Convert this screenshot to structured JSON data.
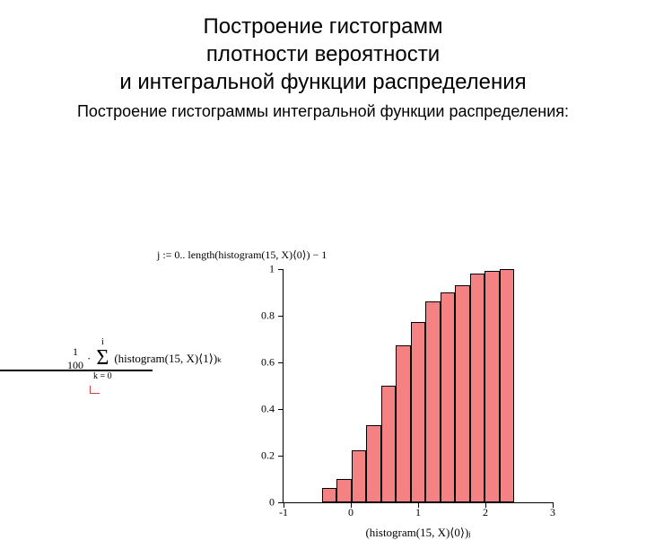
{
  "title_line1": "Построение гистограмм",
  "title_line2": "плотности вероятности",
  "title_line3": "и интегральной функции распределения",
  "subtitle": "Построение гистограммы интегральной функции распределения:",
  "formula_index": "j := 0.. length(histogram(15, X)⟨0⟩) − 1",
  "formula_frac_top": "1",
  "formula_frac_bot": "100",
  "formula_sigma_top": "i",
  "formula_sigma_bot": "k = 0",
  "formula_body": "(histogram(15, X)⟨1⟩)ₖ",
  "xaxis_title": "(histogram(15, X)⟨0⟩)ⱼ",
  "chart": {
    "type": "bar",
    "bar_fill": "#f58282",
    "bar_stroke": "#000000",
    "background": "#ffffff",
    "xlim": [
      -1,
      3
    ],
    "ylim": [
      0,
      1
    ],
    "yticks": [
      0,
      0.2,
      0.4,
      0.6,
      0.8,
      1
    ],
    "xticks": [
      -1,
      0,
      1,
      2,
      3
    ],
    "bar_width": 0.22,
    "data": [
      {
        "x": -0.32,
        "y": 0.06
      },
      {
        "x": -0.1,
        "y": 0.1
      },
      {
        "x": 0.12,
        "y": 0.22
      },
      {
        "x": 0.34,
        "y": 0.33
      },
      {
        "x": 0.56,
        "y": 0.5
      },
      {
        "x": 0.78,
        "y": 0.67
      },
      {
        "x": 1.0,
        "y": 0.77
      },
      {
        "x": 1.22,
        "y": 0.86
      },
      {
        "x": 1.44,
        "y": 0.9
      },
      {
        "x": 1.66,
        "y": 0.93
      },
      {
        "x": 1.88,
        "y": 0.98
      },
      {
        "x": 2.1,
        "y": 0.99
      },
      {
        "x": 2.32,
        "y": 1.0
      }
    ]
  }
}
